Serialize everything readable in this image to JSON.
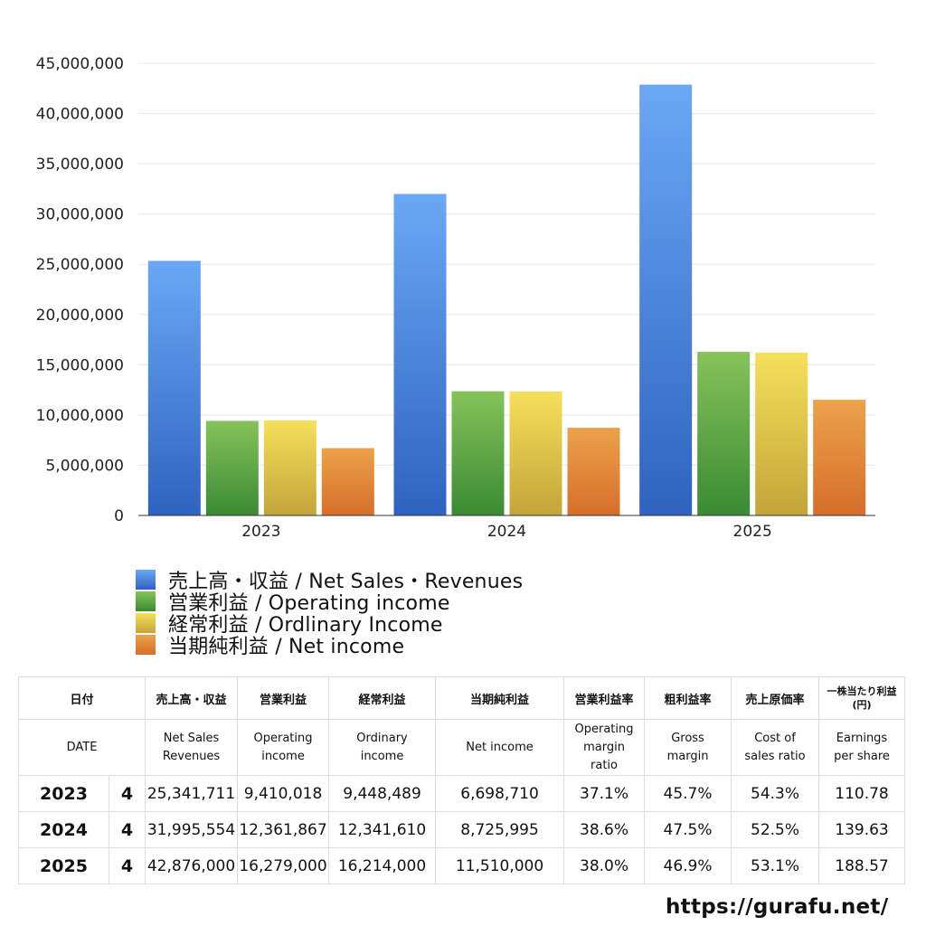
{
  "chart_data": {
    "type": "bar",
    "categories": [
      "2023",
      "2024",
      "2025"
    ],
    "series": [
      {
        "name": "売上高・収益 / Net Sales・Revenues",
        "values": [
          25341711,
          31995554,
          42876000
        ]
      },
      {
        "name": "営業利益 / Operating income",
        "values": [
          9410018,
          12361867,
          16279000
        ]
      },
      {
        "name": "経常利益 / Ordlinary Income",
        "values": [
          9448489,
          12341610,
          16214000
        ]
      },
      {
        "name": "当期純利益 / Net income",
        "values": [
          6698710,
          8725995,
          11510000
        ]
      }
    ],
    "yticks": [
      "0",
      "5,000,000",
      "10,000,000",
      "15,000,000",
      "20,000,000",
      "25,000,000",
      "30,000,000",
      "35,000,000",
      "40,000,000",
      "45,000,000"
    ],
    "ylim": [
      0,
      45000000
    ],
    "grid": true,
    "legend_position": "bottom-left",
    "colors": [
      {
        "top": "#6aa8f5",
        "bottom": "#2f62c0"
      },
      {
        "top": "#86c35a",
        "bottom": "#3a8a34"
      },
      {
        "top": "#f5e05a",
        "bottom": "#c4a43a"
      },
      {
        "top": "#eca24a",
        "bottom": "#d66e2a"
      }
    ]
  },
  "table": {
    "header_ja": [
      "日付",
      "売上高・収益",
      "営業利益",
      "経常利益",
      "当期純利益",
      "営業利益率",
      "粗利益率",
      "売上原価率",
      "一株当たり利益",
      "(円)"
    ],
    "header_en": {
      "date": "DATE",
      "sales": [
        "Net Sales",
        "Revenues"
      ],
      "op": [
        "Operating",
        "income"
      ],
      "ord": [
        "Ordinary",
        "income"
      ],
      "net": "Net income",
      "opm": [
        "Operating",
        "margin",
        "ratio"
      ],
      "gm": [
        "Gross",
        "margin"
      ],
      "cost": [
        "Cost of",
        "sales ratio"
      ],
      "eps": [
        "Earnings",
        "per share"
      ]
    },
    "rows": [
      {
        "year": "2023",
        "q": "4",
        "sales": "25,341,711",
        "op": "9,410,018",
        "ord": "9,448,489",
        "net": "6,698,710",
        "opm": "37.1%",
        "gm": "45.7%",
        "cost": "54.3%",
        "eps": "110.78"
      },
      {
        "year": "2024",
        "q": "4",
        "sales": "31,995,554",
        "op": "12,361,867",
        "ord": "12,341,610",
        "net": "8,725,995",
        "opm": "38.6%",
        "gm": "47.5%",
        "cost": "52.5%",
        "eps": "139.63"
      },
      {
        "year": "2025",
        "q": "4",
        "sales": "42,876,000",
        "op": "16,279,000",
        "ord": "16,214,000",
        "net": "11,510,000",
        "opm": "38.0%",
        "gm": "46.9%",
        "cost": "53.1%",
        "eps": "188.57"
      }
    ]
  },
  "site_url": "https://gurafu.net/"
}
